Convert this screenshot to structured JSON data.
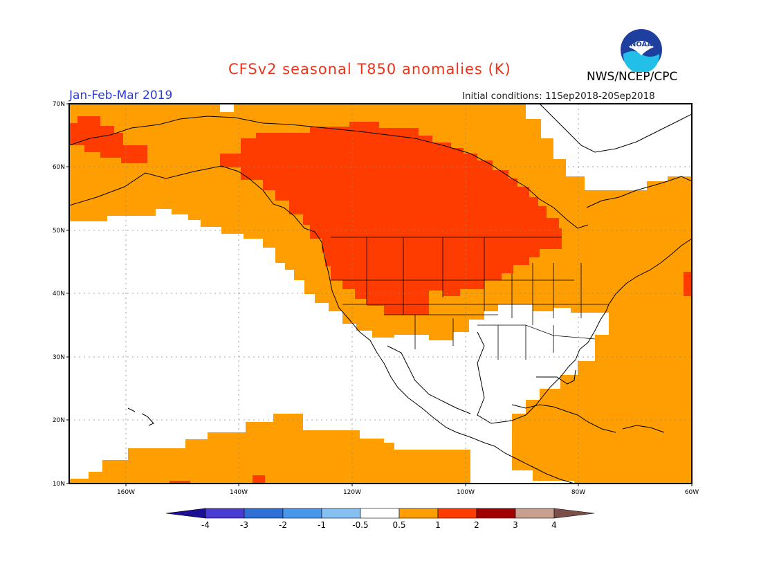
{
  "title": "CFSv2 seasonal T850 anomalies (K)",
  "season": "Jan-Feb-Mar 2019",
  "initial_conditions": "Initial conditions: 11Sep2018-20Sep2018",
  "agency": "NWS/NCEP/CPC",
  "logo_text": "NOAA",
  "map": {
    "lat_labels": [
      "70N",
      "60N",
      "50N",
      "40N",
      "30N",
      "20N",
      "10N"
    ],
    "lon_labels": [
      "160W",
      "140W",
      "120W",
      "100W",
      "80W",
      "60W"
    ],
    "extent": {
      "lon": [
        -170,
        -60
      ],
      "lat": [
        10,
        70
      ]
    }
  },
  "colorbar": {
    "labels": [
      "-4",
      "-3",
      "-2",
      "-1",
      "-0.5",
      "0.5",
      "1",
      "2",
      "3",
      "4"
    ],
    "colors": [
      "#1c0f96",
      "#4a3bd3",
      "#2f6fd6",
      "#4897ea",
      "#86bff2",
      "#ffffff",
      "#ff9e00",
      "#ff3c00",
      "#a10000",
      "#c9a08f",
      "#7a5048"
    ]
  }
}
